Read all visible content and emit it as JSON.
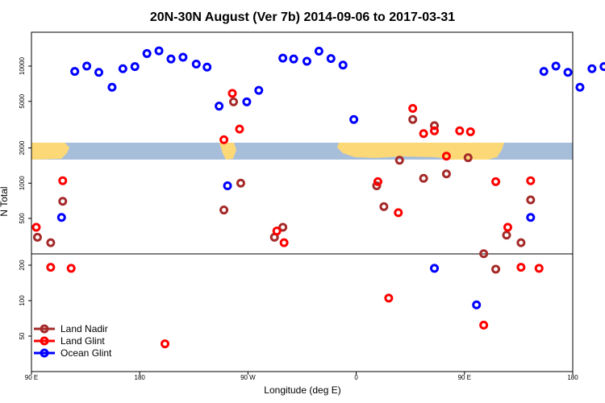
{
  "chart_data": {
    "type": "scatter",
    "title": "20N-30N August (Ver 7b)   2014-09-06 to 2017-03-31",
    "xlabel": "Longitude (deg E)",
    "ylabel": "N Total",
    "x_ticks": [
      {
        "value": 90,
        "label": "90 E"
      },
      {
        "value": 180,
        "label": "180"
      },
      {
        "value": 270,
        "label": "90 W"
      },
      {
        "value": 360,
        "label": "0"
      },
      {
        "value": 450,
        "label": "90 E"
      },
      {
        "value": 540,
        "label": "180"
      }
    ],
    "xlim": [
      90,
      540
    ],
    "y_scale": "log",
    "y_ticks": [
      50,
      100,
      200,
      500,
      1000,
      2000,
      5000,
      10000
    ],
    "legend": {
      "placement": "bottom-left"
    },
    "series": [
      {
        "name": "Land Nadir",
        "color": "#a52a2a",
        "points": [
          {
            "x": 95,
            "y": 345
          },
          {
            "x": 106,
            "y": 310
          },
          {
            "x": 116,
            "y": 700
          },
          {
            "x": 250,
            "y": 590
          },
          {
            "x": 258,
            "y": 4950
          },
          {
            "x": 264,
            "y": 1000
          },
          {
            "x": 292,
            "y": 345
          },
          {
            "x": 299,
            "y": 420
          },
          {
            "x": 377,
            "y": 950
          },
          {
            "x": 383,
            "y": 630
          },
          {
            "x": 396,
            "y": 1570
          },
          {
            "x": 407,
            "y": 3500
          },
          {
            "x": 416,
            "y": 1100
          },
          {
            "x": 425,
            "y": 3100
          },
          {
            "x": 435,
            "y": 1200
          },
          {
            "x": 453,
            "y": 1650
          },
          {
            "x": 466,
            "y": 250
          },
          {
            "x": 476,
            "y": 185
          },
          {
            "x": 485,
            "y": 360
          },
          {
            "x": 497,
            "y": 310
          },
          {
            "x": 505,
            "y": 720
          }
        ]
      },
      {
        "name": "Land Glint",
        "color": "#ff0000",
        "points": [
          {
            "x": 94,
            "y": 420
          },
          {
            "x": 106,
            "y": 192
          },
          {
            "x": 116,
            "y": 1050
          },
          {
            "x": 123,
            "y": 188
          },
          {
            "x": 201,
            "y": 43
          },
          {
            "x": 250,
            "y": 2350
          },
          {
            "x": 257,
            "y": 5850
          },
          {
            "x": 263,
            "y": 2900
          },
          {
            "x": 294,
            "y": 390
          },
          {
            "x": 300,
            "y": 310
          },
          {
            "x": 378,
            "y": 1030
          },
          {
            "x": 387,
            "y": 105
          },
          {
            "x": 395,
            "y": 560
          },
          {
            "x": 407,
            "y": 4350
          },
          {
            "x": 416,
            "y": 2650
          },
          {
            "x": 425,
            "y": 2800
          },
          {
            "x": 435,
            "y": 1700
          },
          {
            "x": 446,
            "y": 2800
          },
          {
            "x": 455,
            "y": 2750
          },
          {
            "x": 466,
            "y": 62
          },
          {
            "x": 476,
            "y": 1030
          },
          {
            "x": 486,
            "y": 420
          },
          {
            "x": 497,
            "y": 192
          },
          {
            "x": 505,
            "y": 1050
          },
          {
            "x": 512,
            "y": 188
          }
        ]
      },
      {
        "name": "Ocean Glint",
        "color": "#0000ff",
        "points": [
          {
            "x": 115,
            "y": 510
          },
          {
            "x": 126,
            "y": 9000
          },
          {
            "x": 136,
            "y": 10000
          },
          {
            "x": 146,
            "y": 8850
          },
          {
            "x": 157,
            "y": 6600
          },
          {
            "x": 166,
            "y": 9500
          },
          {
            "x": 176,
            "y": 9900
          },
          {
            "x": 186,
            "y": 12800
          },
          {
            "x": 196,
            "y": 13500
          },
          {
            "x": 206,
            "y": 11500
          },
          {
            "x": 216,
            "y": 11900
          },
          {
            "x": 227,
            "y": 10400
          },
          {
            "x": 236,
            "y": 9800
          },
          {
            "x": 246,
            "y": 4550
          },
          {
            "x": 253,
            "y": 950
          },
          {
            "x": 269,
            "y": 4950
          },
          {
            "x": 279,
            "y": 6200
          },
          {
            "x": 299,
            "y": 11700
          },
          {
            "x": 308,
            "y": 11500
          },
          {
            "x": 319,
            "y": 11000
          },
          {
            "x": 329,
            "y": 13400
          },
          {
            "x": 339,
            "y": 11600
          },
          {
            "x": 349,
            "y": 10200
          },
          {
            "x": 358,
            "y": 3500
          },
          {
            "x": 425,
            "y": 188
          },
          {
            "x": 460,
            "y": 92
          },
          {
            "x": 505,
            "y": 510
          },
          {
            "x": 516,
            "y": 9000
          },
          {
            "x": 526,
            "y": 10000
          },
          {
            "x": 536,
            "y": 8850
          },
          {
            "x": 546,
            "y": 6600
          },
          {
            "x": 556,
            "y": 9500
          },
          {
            "x": 566,
            "y": 9900
          }
        ]
      }
    ]
  }
}
